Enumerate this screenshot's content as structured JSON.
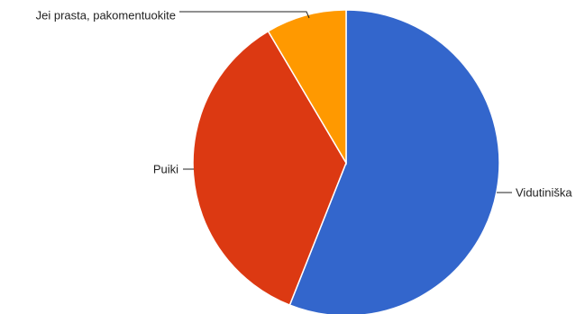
{
  "chart_data": {
    "type": "pie",
    "slices": [
      {
        "label": "Vidutiniška",
        "value": 56,
        "color": "#3366cc"
      },
      {
        "label": "Puiki",
        "value": 35.5,
        "color": "#dc3912"
      },
      {
        "label": "Jei prasta, pakomentuokite",
        "value": 8.5,
        "color": "#ff9900"
      }
    ],
    "start": "12 o'clock",
    "direction": "clockwise",
    "legend": "external labels"
  }
}
